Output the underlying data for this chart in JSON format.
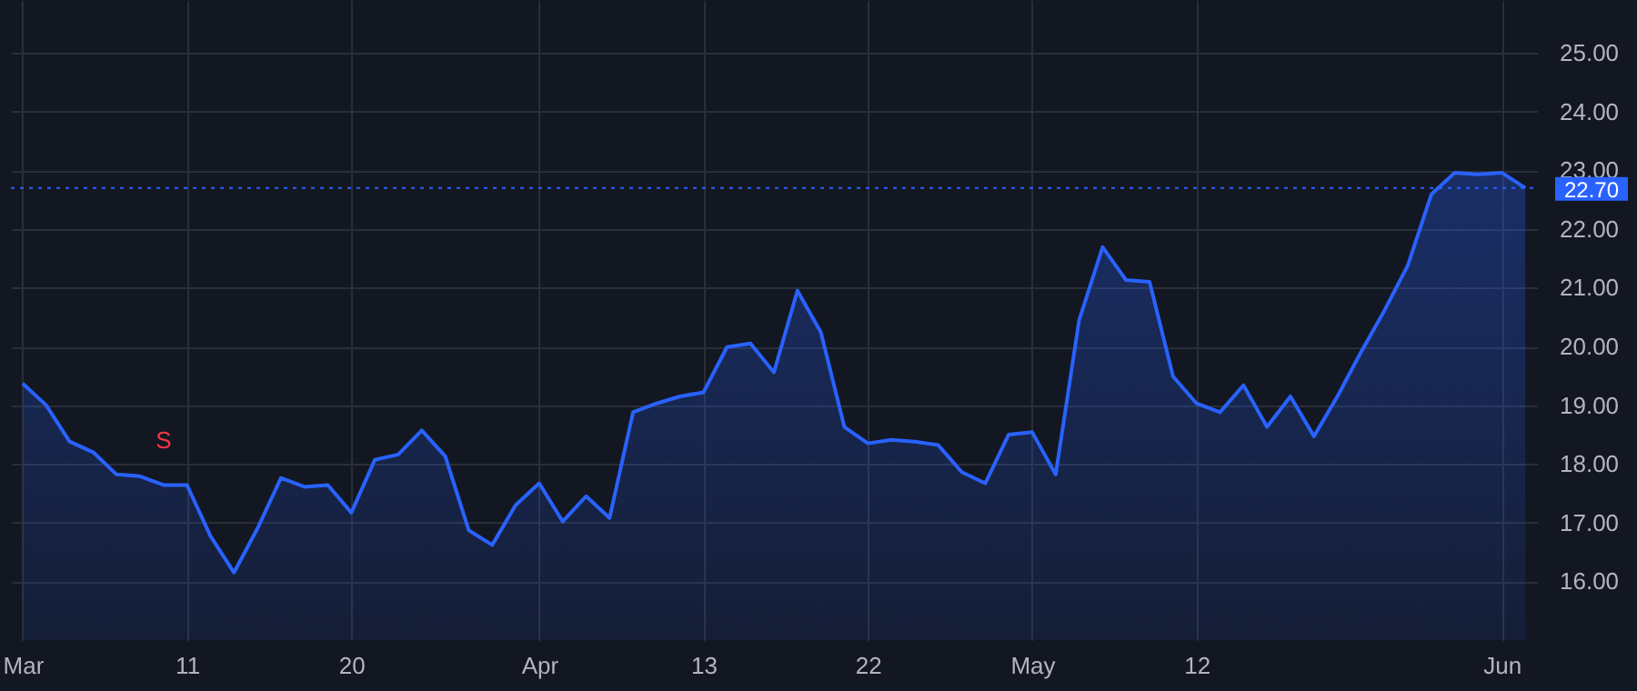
{
  "chart_data": {
    "type": "area",
    "categories": [
      "Mar",
      null,
      null,
      null,
      null,
      null,
      null,
      "11",
      null,
      null,
      null,
      null,
      null,
      null,
      "20",
      null,
      null,
      null,
      null,
      null,
      null,
      null,
      "Apr",
      null,
      null,
      null,
      null,
      null,
      null,
      "13",
      null,
      null,
      null,
      null,
      null,
      null,
      "22",
      null,
      null,
      null,
      null,
      null,
      null,
      "May",
      null,
      null,
      null,
      null,
      null,
      null,
      "12",
      null,
      null,
      null,
      null,
      null,
      null,
      null,
      null,
      null,
      null,
      null,
      null,
      "Jun",
      null
    ],
    "series": [
      {
        "color": "#2962ff",
        "values": [
          19.37,
          19.0,
          18.38,
          18.2,
          17.82,
          17.79,
          17.64,
          17.64,
          16.77,
          16.15,
          16.9,
          17.76,
          17.61,
          17.64,
          17.17,
          18.07,
          18.16,
          18.57,
          18.13,
          16.87,
          16.62,
          17.3,
          17.67,
          17.02,
          17.45,
          17.08,
          18.88,
          19.03,
          19.15,
          19.22,
          19.99,
          20.05,
          19.56,
          20.95,
          20.24,
          18.63,
          18.35,
          18.41,
          18.38,
          18.32,
          17.86,
          17.67,
          18.5,
          18.54,
          17.82,
          20.45,
          21.69,
          21.13,
          21.1,
          19.49,
          19.03,
          18.88,
          19.34,
          18.63,
          19.15,
          18.47,
          19.15,
          19.9,
          20.61,
          21.38,
          22.59,
          22.96,
          22.93,
          22.96,
          22.7
        ]
      }
    ],
    "ylim": [
      15.0,
      25.9
    ],
    "yticks": [
      {
        "value": 16,
        "label": "16.00"
      },
      {
        "value": 17,
        "label": "17.00"
      },
      {
        "value": 18,
        "label": "18.00"
      },
      {
        "value": 19,
        "label": "19.00"
      },
      {
        "value": 20,
        "label": "20.00"
      },
      {
        "value": 21,
        "label": "21.00"
      },
      {
        "value": 22,
        "label": "22.00"
      },
      {
        "value": 23,
        "label": "23.00"
      },
      {
        "value": 24,
        "label": "24.00"
      },
      {
        "value": 25,
        "label": "25.00"
      }
    ],
    "grid": true,
    "ref_lines": [
      {
        "axis": "y",
        "value": 22.7,
        "label": "22.70",
        "color": "#2962ff",
        "line_style": "dotted"
      }
    ],
    "annotations": [
      {
        "text": "S",
        "y": 17.64
      }
    ]
  }
}
